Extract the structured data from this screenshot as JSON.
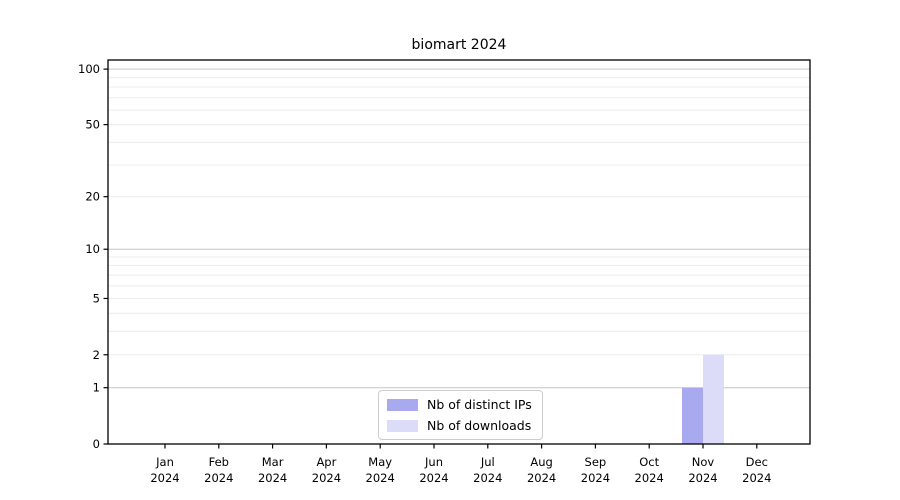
{
  "title": "biomart 2024",
  "chart_data": {
    "type": "bar",
    "title": "biomart 2024",
    "categories": [
      {
        "label": "Jan",
        "sublabel": "2024"
      },
      {
        "label": "Feb",
        "sublabel": "2024"
      },
      {
        "label": "Mar",
        "sublabel": "2024"
      },
      {
        "label": "Apr",
        "sublabel": "2024"
      },
      {
        "label": "May",
        "sublabel": "2024"
      },
      {
        "label": "Jun",
        "sublabel": "2024"
      },
      {
        "label": "Jul",
        "sublabel": "2024"
      },
      {
        "label": "Aug",
        "sublabel": "2024"
      },
      {
        "label": "Sep",
        "sublabel": "2024"
      },
      {
        "label": "Oct",
        "sublabel": "2024"
      },
      {
        "label": "Nov",
        "sublabel": "2024"
      },
      {
        "label": "Dec",
        "sublabel": "2024"
      }
    ],
    "series": [
      {
        "name": "Nb of distinct IPs",
        "color": "#a9a9f0",
        "values": [
          0,
          0,
          0,
          0,
          0,
          0,
          0,
          0,
          0,
          0,
          1,
          0
        ]
      },
      {
        "name": "Nb of downloads",
        "color": "#dcdcf8",
        "values": [
          0,
          0,
          0,
          0,
          0,
          0,
          0,
          0,
          0,
          0,
          2,
          0
        ]
      }
    ],
    "y_ticks": [
      0,
      1,
      2,
      5,
      10,
      20,
      50,
      100
    ],
    "y_scale": "log1p",
    "ylim": [
      0,
      112
    ],
    "xlabel": "",
    "ylabel": "",
    "grid": true,
    "grid_major_values": [
      1,
      10,
      100
    ],
    "grid_major_color": "#c6c6c6",
    "grid_minor_color": "#ececec",
    "axis_color": "#000000",
    "legend_position": "bottom-center"
  }
}
